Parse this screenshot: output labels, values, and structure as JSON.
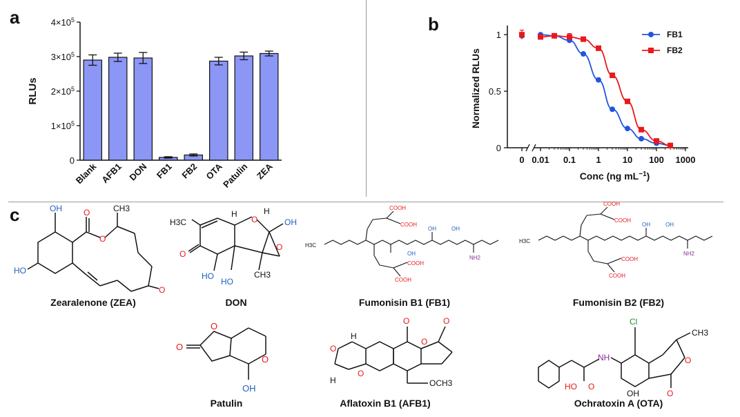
{
  "panels": {
    "a": "a",
    "b": "b",
    "c": "c"
  },
  "chart_data": [
    {
      "type": "bar",
      "panel": "a",
      "categories": [
        "Blank",
        "AFB1",
        "DON",
        "FB1",
        "FB2",
        "OTA",
        "Patulin",
        "ZEA"
      ],
      "values": [
        290000,
        298000,
        296000,
        8000,
        15000,
        287000,
        302000,
        309000
      ],
      "errors": [
        15000,
        12000,
        16000,
        2000,
        3000,
        11000,
        11000,
        7000
      ],
      "ylabel": "RLUs",
      "ylim": [
        0,
        400000
      ],
      "yticks": [
        {
          "value": 0,
          "mant": "0",
          "exp": ""
        },
        {
          "value": 100000,
          "mant": "1×10",
          "exp": "5"
        },
        {
          "value": 200000,
          "mant": "2×10",
          "exp": "5"
        },
        {
          "value": 300000,
          "mant": "3×10",
          "exp": "5"
        },
        {
          "value": 400000,
          "mant": "4×10",
          "exp": "5"
        }
      ],
      "bar_color": "#8c96f5"
    },
    {
      "type": "line",
      "panel": "b",
      "xlabel_main": "Conc (ng mL",
      "xlabel_exp": "−1",
      "xlabel_end": ")",
      "ylabel": "Normalized RLUs",
      "xscale": "log",
      "xtick_labels": [
        {
          "value": 0,
          "label": "0"
        },
        {
          "value": 0.01,
          "label": "0.01"
        },
        {
          "value": 0.1,
          "label": "0.1"
        },
        {
          "value": 1,
          "label": "1"
        },
        {
          "value": 10,
          "label": "10"
        },
        {
          "value": 100,
          "label": "100"
        },
        {
          "value": 1000,
          "label": "1000"
        }
      ],
      "yticks": [
        {
          "value": 0,
          "label": "0"
        },
        {
          "value": 0.5,
          "label": "0.5"
        },
        {
          "value": 1,
          "label": "1"
        }
      ],
      "ylim": [
        0,
        1.05
      ],
      "legend_position": "top-right",
      "series": [
        {
          "name": "FB1",
          "color": "#2155e0",
          "marker": "circle",
          "x": [
            0,
            0.01,
            0.03,
            0.1,
            0.3,
            1,
            3,
            10,
            30,
            100,
            300
          ],
          "y": [
            0.99,
            1.0,
            0.99,
            0.95,
            0.83,
            0.6,
            0.34,
            0.17,
            0.08,
            0.04,
            0.02
          ],
          "err": [
            0.02,
            0.01,
            0.01,
            0.01,
            0.01,
            0.01,
            0.01,
            0.01,
            0.01,
            0.01,
            0.01
          ]
        },
        {
          "name": "FB2",
          "color": "#e8191c",
          "marker": "square",
          "x": [
            0,
            0.01,
            0.03,
            0.1,
            0.3,
            1,
            3,
            10,
            30,
            100,
            300
          ],
          "y": [
            1.0,
            0.98,
            0.99,
            0.98,
            0.96,
            0.88,
            0.64,
            0.41,
            0.16,
            0.06,
            0.02
          ],
          "err": [
            0.04,
            0.02,
            0.01,
            0.03,
            0.01,
            0.01,
            0.02,
            0.01,
            0.01,
            0.01,
            0.01
          ]
        }
      ]
    }
  ],
  "molecules": [
    {
      "name": "Zearalenone (ZEA)"
    },
    {
      "name": "DON"
    },
    {
      "name": "Fumonisin B1 (FB1)"
    },
    {
      "name": "Fumonisin B2 (FB2)"
    },
    {
      "name": "Patulin"
    },
    {
      "name": "Aflatoxin B1 (AFB1)"
    },
    {
      "name": "Ochratoxin A (OTA)"
    }
  ],
  "atom_labels": {
    "oh": "OH",
    "o": "O",
    "h": "H",
    "h3c": "H3C",
    "ch3": "CH3",
    "ho": "HO",
    "cooh": "COOH",
    "nh2": "NH2",
    "nh": "NH",
    "cl": "Cl",
    "h3cchain": "H3C",
    "och3": "OCH3"
  },
  "colors": {
    "red": "#e8191c",
    "blue": "#1f5fbf",
    "purple": "#8a2a9a",
    "green": "#2a8a2a",
    "black": "#111111"
  }
}
